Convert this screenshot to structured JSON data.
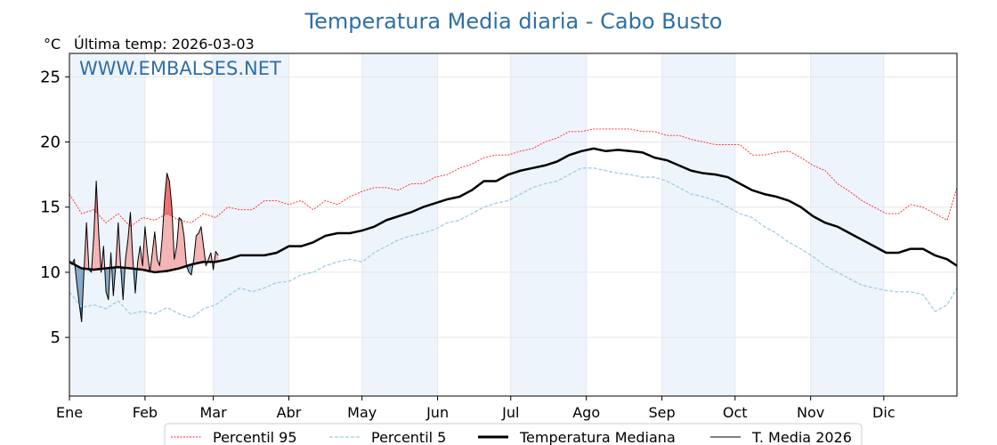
{
  "chart_data": {
    "type": "line",
    "title": "Temperatura Media diaria - Cabo Busto",
    "ylabel": "°C",
    "subtitle": "Última temp: 2026-03-03",
    "watermark": "WWW.EMBALSES.NET",
    "ylim": [
      0.5,
      26.8
    ],
    "xlim_days": [
      0,
      364
    ],
    "yticks": [
      5,
      10,
      15,
      20,
      25
    ],
    "months": [
      "Ene",
      "Feb",
      "Mar",
      "Abr",
      "May",
      "Jun",
      "Jul",
      "Ago",
      "Sep",
      "Oct",
      "Nov",
      "Dic"
    ],
    "month_start_days": [
      0,
      31,
      59,
      90,
      120,
      151,
      181,
      212,
      243,
      273,
      304,
      334
    ],
    "shaded_months": [
      "Ene",
      "Mar",
      "May",
      "Jul",
      "Sep",
      "Nov"
    ],
    "grid": true,
    "legend_position": "bottom-center",
    "legend": [
      "Percentil 95",
      "Percentil 5",
      "Temperatura Mediana",
      "T. Media 2026"
    ],
    "colors": {
      "title": "#2f6ea6",
      "p95": "#ff2020",
      "p5": "#9fcde0",
      "median": "#000000",
      "current": "#000000",
      "above": "#f4b4b4",
      "above_p95": "#ef7070",
      "below": "#86aacb",
      "below_p5": "#2a64a0",
      "shade": "#eef4fb"
    },
    "climatology_days": [
      0,
      5,
      10,
      15,
      20,
      25,
      30,
      35,
      40,
      45,
      50,
      55,
      60,
      65,
      70,
      75,
      80,
      85,
      90,
      95,
      100,
      105,
      110,
      115,
      120,
      125,
      130,
      135,
      140,
      145,
      150,
      155,
      160,
      165,
      170,
      175,
      180,
      185,
      190,
      195,
      200,
      205,
      210,
      215,
      220,
      225,
      230,
      235,
      240,
      245,
      250,
      255,
      260,
      265,
      270,
      275,
      280,
      285,
      290,
      295,
      300,
      305,
      310,
      315,
      320,
      325,
      330,
      335,
      340,
      345,
      350,
      355,
      360,
      364
    ],
    "series": [
      {
        "name": "Percentil 95",
        "values": [
          16,
          14.5,
          14.8,
          13.8,
          14.5,
          13.5,
          14.2,
          14.0,
          14.5,
          14.0,
          13.8,
          14.5,
          14.2,
          15.0,
          14.8,
          14.8,
          15.5,
          15.5,
          15.2,
          15.5,
          14.8,
          15.5,
          15.2,
          15.8,
          16.2,
          16.5,
          16.5,
          16.3,
          16.8,
          16.8,
          17.3,
          17.5,
          18.0,
          18.3,
          18.8,
          19.0,
          19.0,
          19.3,
          19.5,
          20.0,
          20.3,
          20.8,
          20.8,
          21.0,
          21.0,
          21.0,
          21.0,
          20.8,
          20.8,
          20.5,
          20.5,
          20.2,
          20.0,
          19.8,
          19.8,
          19.8,
          19.0,
          19.0,
          19.2,
          19.3,
          18.8,
          18.2,
          17.8,
          16.8,
          16.2,
          15.5,
          15.0,
          14.5,
          14.5,
          15.2,
          15.0,
          14.5,
          14.0,
          16.5
        ]
      },
      {
        "name": "Percentil 5",
        "values": [
          8.5,
          7.3,
          7.5,
          7.2,
          7.8,
          6.8,
          7.0,
          6.8,
          7.3,
          6.8,
          6.5,
          7.2,
          7.5,
          8.2,
          8.8,
          8.5,
          8.8,
          9.2,
          9.3,
          9.8,
          10.0,
          10.5,
          10.8,
          11.0,
          10.8,
          11.5,
          12.0,
          12.5,
          12.8,
          13.0,
          13.3,
          13.8,
          14.0,
          14.5,
          15.0,
          15.3,
          15.5,
          16.0,
          16.5,
          16.8,
          17.0,
          17.5,
          18.0,
          18.0,
          17.8,
          17.6,
          17.5,
          17.3,
          17.3,
          17.0,
          16.5,
          16.0,
          15.8,
          15.5,
          15.0,
          14.5,
          14.2,
          13.5,
          13.0,
          12.3,
          11.8,
          11.2,
          10.5,
          10.0,
          9.5,
          9.0,
          8.8,
          8.6,
          8.5,
          8.5,
          8.3,
          7.0,
          7.5,
          8.8
        ]
      },
      {
        "name": "Temperatura Mediana",
        "values": [
          10.8,
          10.3,
          10.2,
          10.3,
          10.4,
          10.3,
          10.2,
          10.0,
          10.1,
          10.3,
          10.6,
          10.8,
          10.8,
          11.0,
          11.3,
          11.3,
          11.3,
          11.5,
          12.0,
          12.0,
          12.3,
          12.8,
          13.0,
          13.0,
          13.2,
          13.5,
          14.0,
          14.3,
          14.6,
          15.0,
          15.3,
          15.6,
          15.8,
          16.3,
          17.0,
          17.0,
          17.5,
          17.8,
          18.0,
          18.2,
          18.5,
          19.0,
          19.3,
          19.5,
          19.3,
          19.4,
          19.3,
          19.2,
          18.8,
          18.6,
          18.2,
          17.8,
          17.6,
          17.5,
          17.3,
          16.8,
          16.3,
          16.0,
          15.8,
          15.5,
          15.0,
          14.3,
          13.8,
          13.5,
          13.0,
          12.5,
          12.0,
          11.5,
          11.5,
          11.8,
          11.8,
          11.3,
          11.0,
          10.5
        ]
      },
      {
        "name": "T. Media 2026",
        "start_day": 0,
        "values": [
          10.9,
          10.6,
          11.0,
          9.2,
          7.6,
          6.2,
          10.2,
          13.8,
          10.2,
          10.0,
          12.8,
          17.0,
          13.0,
          10.0,
          12.0,
          8.5,
          7.9,
          11.5,
          8.2,
          10.5,
          13.8,
          10.5,
          7.9,
          11.0,
          12.5,
          14.6,
          11.0,
          8.4,
          10.8,
          12.0,
          10.5,
          13.5,
          11.5,
          10.0,
          11.5,
          13.1,
          11.0,
          10.5,
          12.5,
          15.5,
          17.6,
          17.0,
          15.0,
          11.0,
          12.0,
          14.2,
          14.0,
          12.8,
          10.5,
          10.0,
          9.8,
          11.0,
          12.8,
          13.0,
          13.5,
          12.0,
          10.5,
          11.0,
          11.5,
          10.2,
          11.6,
          11.3
        ]
      }
    ]
  }
}
